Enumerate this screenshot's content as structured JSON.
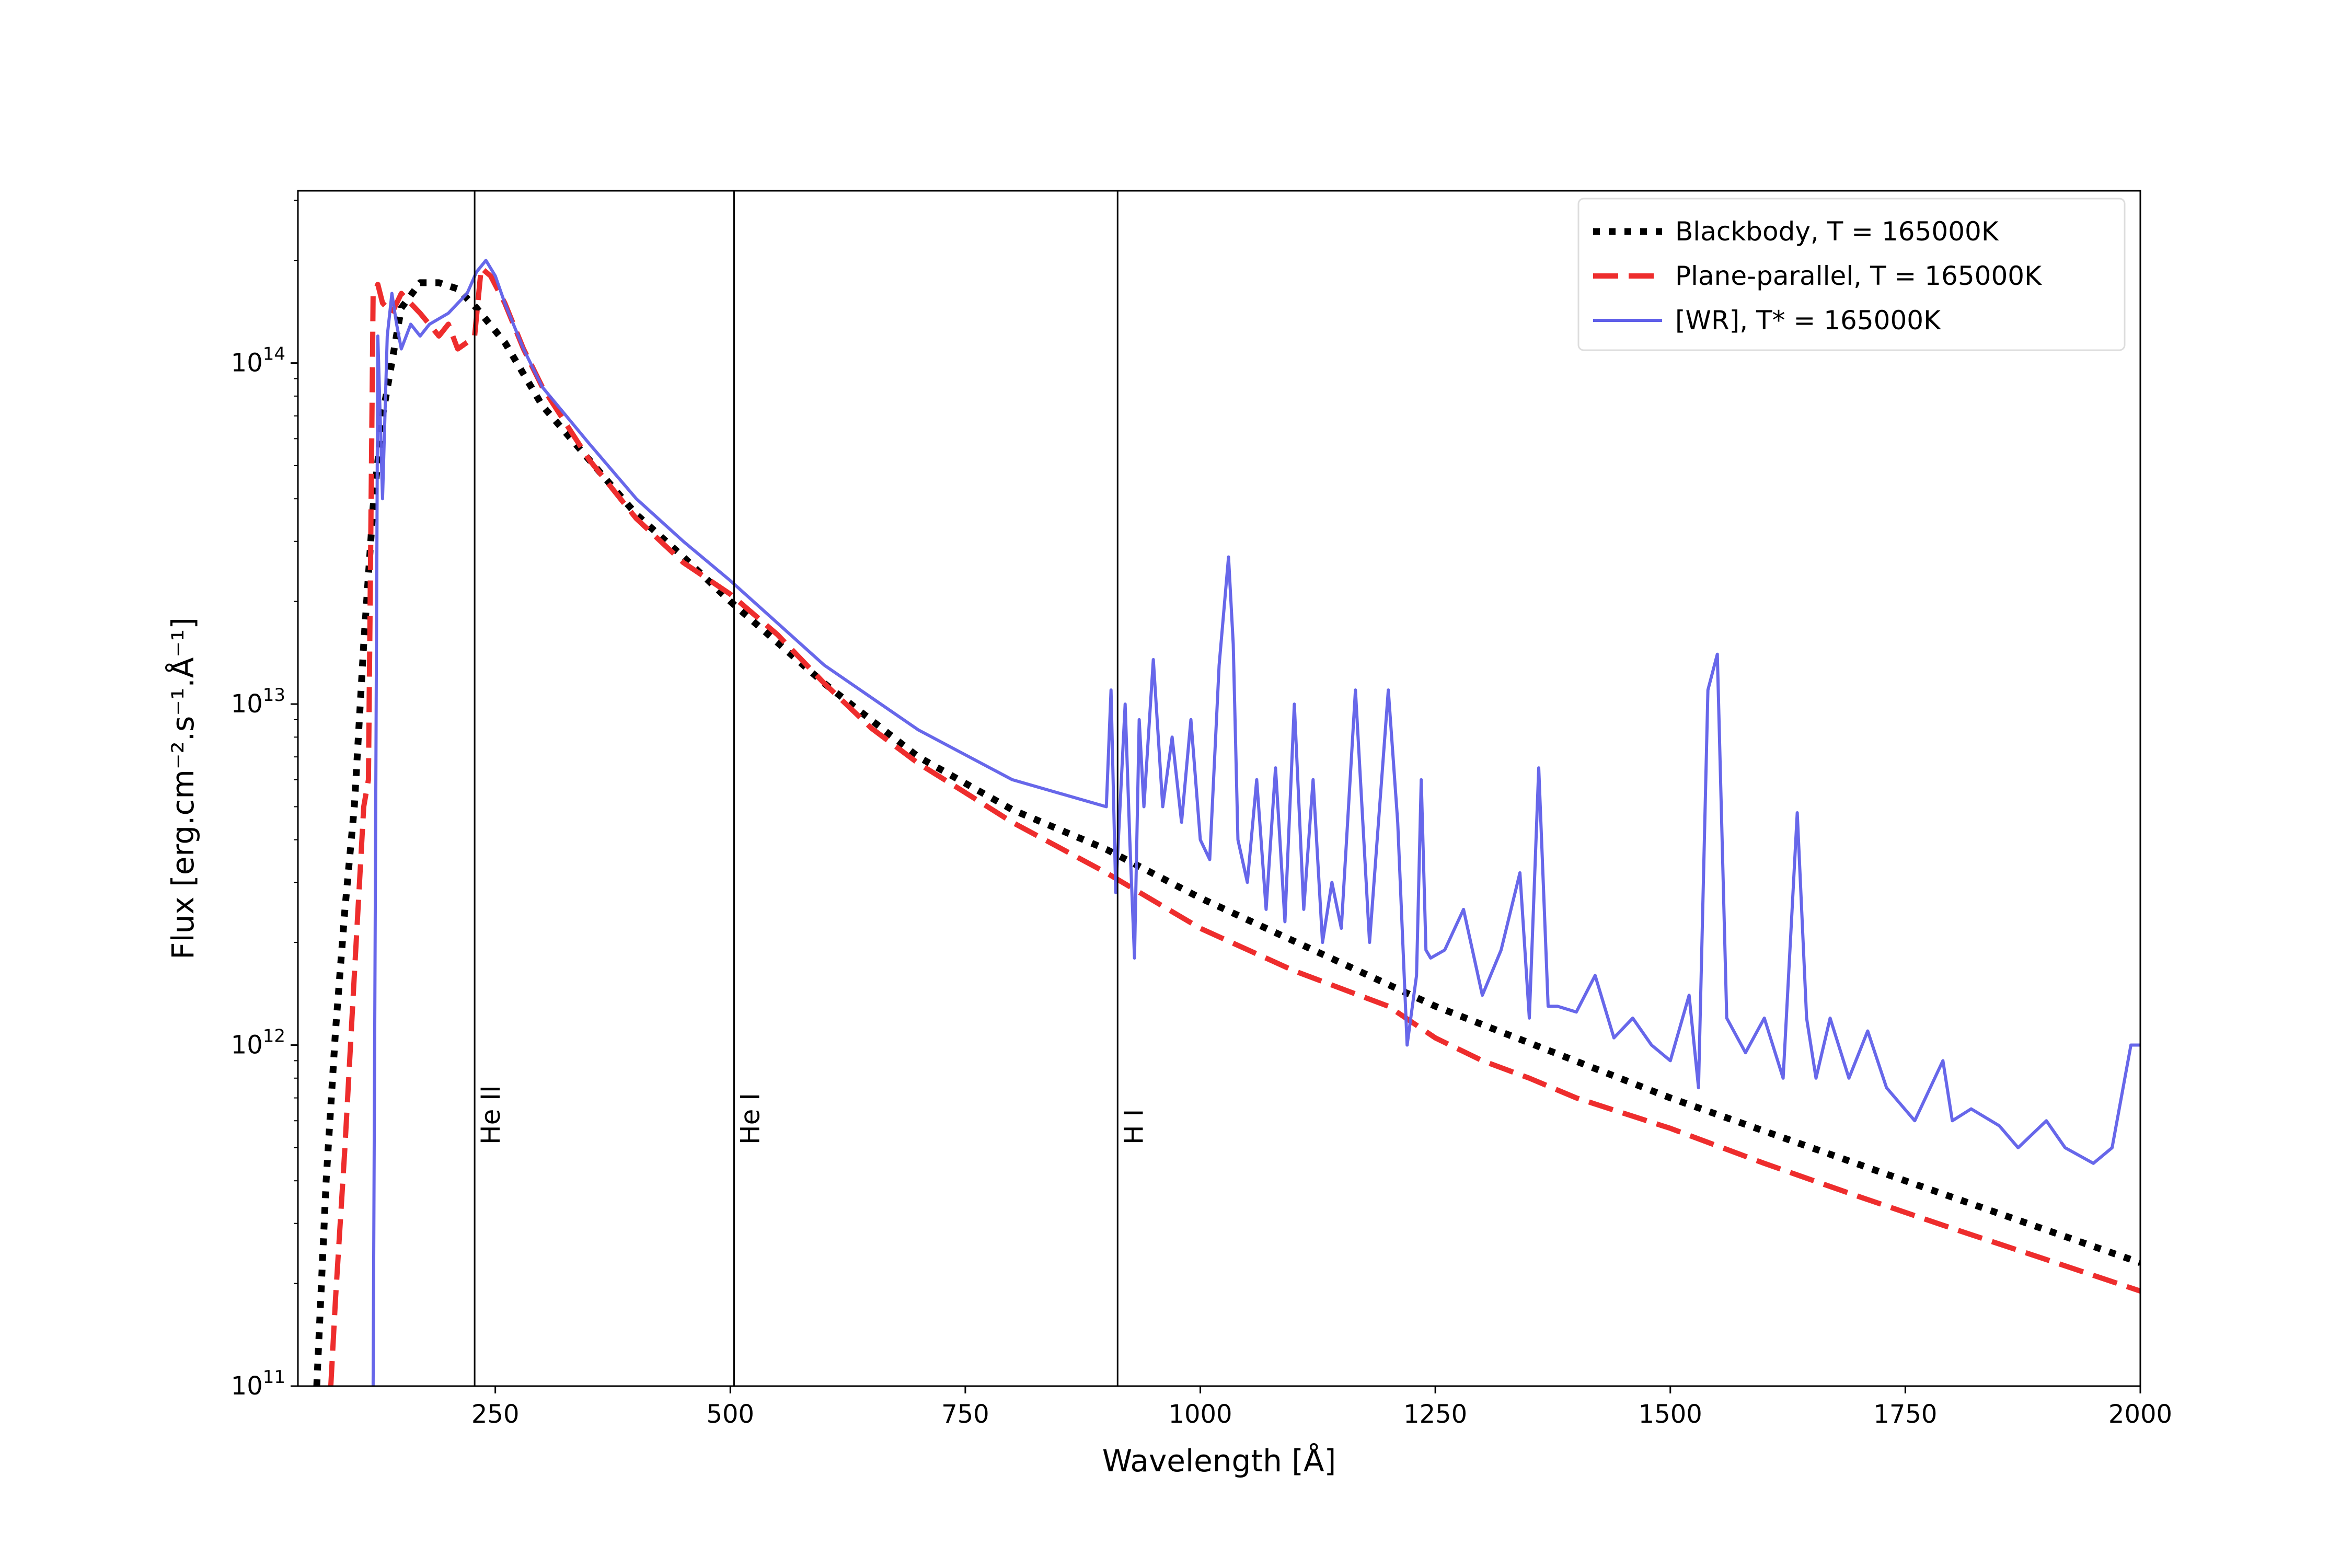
{
  "chart_data": {
    "type": "line",
    "title": "",
    "xlabel": "Wavelength [Å]",
    "ylabel": "Flux [erg.cm⁻².s⁻¹.Å⁻¹]",
    "xlim": [
      40,
      2000
    ],
    "ylim": [
      100000000000.0,
      320000000000000.0
    ],
    "yscale": "log",
    "x_ticks": [
      250,
      500,
      750,
      1000,
      1250,
      1500,
      1750,
      2000
    ],
    "x_tick_labels": [
      "250",
      "500",
      "750",
      "1000",
      "1250",
      "1500",
      "1750",
      "2000"
    ],
    "y_ticks": [
      100000000000.0,
      1000000000000.0,
      10000000000000.0,
      100000000000000.0
    ],
    "y_tick_labels": [
      {
        "base": "10",
        "exp": "11"
      },
      {
        "base": "10",
        "exp": "12"
      },
      {
        "base": "10",
        "exp": "13"
      },
      {
        "base": "10",
        "exp": "14"
      }
    ],
    "legend_position": "top-right",
    "vertical_lines": [
      {
        "x": 228,
        "label": "He II"
      },
      {
        "x": 504,
        "label": "He I"
      },
      {
        "x": 912,
        "label": "H I"
      }
    ],
    "series": [
      {
        "name": "Blackbody, T = 165000K",
        "color": "#000000",
        "style": "dotted",
        "x": [
          60,
          70,
          80,
          90,
          100,
          110,
          120,
          130,
          150,
          170,
          190,
          210,
          230,
          260,
          300,
          350,
          400,
          450,
          500,
          600,
          700,
          800,
          900,
          1000,
          1250,
          1500,
          1750,
          2000
        ],
        "y": [
          100000000000.0,
          400000000000.0,
          1100000000000.0,
          2500000000000.0,
          5000000000000.0,
          15000000000000.0,
          38000000000000.0,
          70000000000000.0,
          145000000000000.0,
          172000000000000.0,
          172000000000000.0,
          165000000000000.0,
          145000000000000.0,
          115000000000000.0,
          75000000000000.0,
          52000000000000.0,
          36000000000000.0,
          27000000000000.0,
          20000000000000.0,
          11500000000000.0,
          7000000000000.0,
          4900000000000.0,
          3750000000000.0,
          2700000000000.0,
          1300000000000.0,
          700000000000.0,
          400000000000.0,
          230000000000.0
        ]
      },
      {
        "name": "Plane-parallel, T = 165000K",
        "color": "#ee2d2d",
        "style": "dashed",
        "x": [
          75,
          80,
          90,
          100,
          110,
          115,
          120,
          125,
          130,
          140,
          150,
          170,
          190,
          200,
          210,
          220,
          228,
          235,
          245,
          260,
          280,
          300,
          350,
          400,
          450,
          500,
          550,
          600,
          650,
          700,
          750,
          800,
          900,
          1000,
          1100,
          1200,
          1250,
          1300,
          1350,
          1400,
          1500,
          1600,
          1700,
          1800,
          1900,
          2000
        ],
        "y": [
          100000000000.0,
          180000000000.0,
          500000000000.0,
          1600000000000.0,
          5000000000000.0,
          6000000000000.0,
          160000000000000.0,
          170000000000000.0,
          150000000000000.0,
          140000000000000.0,
          160000000000000.0,
          140000000000000.0,
          120000000000000.0,
          130000000000000.0,
          110000000000000.0,
          115000000000000.0,
          120000000000000.0,
          190000000000000.0,
          180000000000000.0,
          150000000000000.0,
          110000000000000.0,
          85000000000000.0,
          52000000000000.0,
          35000000000000.0,
          26000000000000.0,
          21000000000000.0,
          16000000000000.0,
          11500000000000.0,
          8500000000000.0,
          6700000000000.0,
          5500000000000.0,
          4500000000000.0,
          3200000000000.0,
          2200000000000.0,
          1650000000000.0,
          1300000000000.0,
          1050000000000.0,
          900000000000.0,
          800000000000.0,
          700000000000.0,
          570000000000.0,
          450000000000.0,
          360000000000.0,
          290000000000.0,
          235000000000.0,
          190000000000.0
        ]
      },
      {
        "name": "[WR], T* = 165000K",
        "color": "#5f5fe9",
        "style": "solid",
        "x": [
          120,
          125,
          130,
          135,
          140,
          145,
          150,
          160,
          170,
          180,
          200,
          220,
          230,
          240,
          250,
          260,
          280,
          300,
          350,
          400,
          450,
          500,
          600,
          700,
          800,
          900,
          905,
          910,
          920,
          925,
          930,
          935,
          940,
          950,
          960,
          970,
          980,
          990,
          1000,
          1010,
          1020,
          1030,
          1035,
          1040,
          1050,
          1060,
          1070,
          1080,
          1090,
          1100,
          1110,
          1120,
          1130,
          1140,
          1150,
          1165,
          1180,
          1200,
          1210,
          1220,
          1230,
          1235,
          1240,
          1245,
          1260,
          1280,
          1300,
          1320,
          1340,
          1350,
          1360,
          1370,
          1380,
          1400,
          1420,
          1440,
          1460,
          1480,
          1500,
          1520,
          1530,
          1540,
          1550,
          1560,
          1580,
          1600,
          1620,
          1635,
          1645,
          1655,
          1670,
          1690,
          1710,
          1730,
          1760,
          1790,
          1800,
          1820,
          1850,
          1870,
          1900,
          1920,
          1950,
          1970,
          1990,
          2000
        ],
        "y": [
          100000000000.0,
          120000000000000.0,
          40000000000000.0,
          120000000000000.0,
          160000000000000.0,
          130000000000000.0,
          110000000000000.0,
          130000000000000.0,
          120000000000000.0,
          130000000000000.0,
          140000000000000.0,
          160000000000000.0,
          185000000000000.0,
          200000000000000.0,
          180000000000000.0,
          150000000000000.0,
          110000000000000.0,
          85000000000000.0,
          58000000000000.0,
          40000000000000.0,
          30000000000000.0,
          23000000000000.0,
          13000000000000.0,
          8400000000000.0,
          6000000000000.0,
          5000000000000.0,
          11000000000000.0,
          2800000000000.0,
          10000000000000.0,
          4000000000000.0,
          1800000000000.0,
          9000000000000.0,
          5000000000000.0,
          13500000000000.0,
          5000000000000.0,
          8000000000000.0,
          4500000000000.0,
          9000000000000.0,
          4000000000000.0,
          3500000000000.0,
          13000000000000.0,
          27000000000000.0,
          15000000000000.0,
          4000000000000.0,
          3000000000000.0,
          6000000000000.0,
          2500000000000.0,
          6500000000000.0,
          2300000000000.0,
          10000000000000.0,
          2500000000000.0,
          6000000000000.0,
          2000000000000.0,
          3000000000000.0,
          2200000000000.0,
          11000000000000.0,
          2000000000000.0,
          11000000000000.0,
          4500000000000.0,
          1000000000000.0,
          1600000000000.0,
          6000000000000.0,
          1900000000000.0,
          1800000000000.0,
          1900000000000.0,
          2500000000000.0,
          1400000000000.0,
          1900000000000.0,
          3200000000000.0,
          1200000000000.0,
          6500000000000.0,
          1300000000000.0,
          1300000000000.0,
          1250000000000.0,
          1600000000000.0,
          1050000000000.0,
          1200000000000.0,
          1000000000000.0,
          900000000000.0,
          1400000000000.0,
          750000000000.0,
          11000000000000.0,
          14000000000000.0,
          1200000000000.0,
          950000000000.0,
          1200000000000.0,
          800000000000.0,
          4800000000000.0,
          1200000000000.0,
          800000000000.0,
          1200000000000.0,
          800000000000.0,
          1100000000000.0,
          750000000000.0,
          600000000000.0,
          900000000000.0,
          600000000000.0,
          650000000000.0,
          580000000000.0,
          500000000000.0,
          600000000000.0,
          500000000000.0,
          450000000000.0,
          500000000000.0,
          1000000000000.0,
          1000000000000.0
        ]
      }
    ]
  }
}
